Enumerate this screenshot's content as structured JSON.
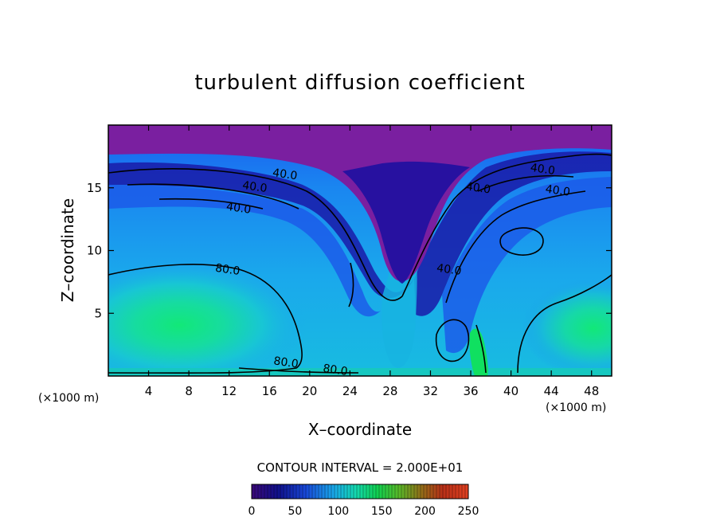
{
  "chart_data": {
    "type": "heatmap",
    "title": "turbulent diffusion coefficient",
    "xlabel": "X–coordinate",
    "ylabel": "Z–coordinate",
    "x_unit_left": "(×1000 m)",
    "x_unit_right": "(×1000 m)",
    "xlim": [
      0,
      50
    ],
    "ylim": [
      0,
      20
    ],
    "x_ticks": [
      4,
      8,
      12,
      16,
      20,
      24,
      28,
      32,
      36,
      40,
      44,
      48
    ],
    "y_ticks": [
      5,
      10,
      15
    ],
    "contour_interval_text": "CONTOUR INTERVAL = 2.000E+01",
    "contour_interval": 20,
    "contour_labels": [
      {
        "text": "40.0",
        "x": 17.5,
        "y": 15.8
      },
      {
        "text": "40.0",
        "x": 14.5,
        "y": 14.8
      },
      {
        "text": "40.0",
        "x": 12.9,
        "y": 13.1
      },
      {
        "text": "80.0",
        "x": 11.8,
        "y": 8.2
      },
      {
        "text": "80.0",
        "x": 17.6,
        "y": 0.8
      },
      {
        "text": "80.0",
        "x": 22.5,
        "y": 0.2
      },
      {
        "text": "40.0",
        "x": 43.1,
        "y": 16.2
      },
      {
        "text": "40.0",
        "x": 36.7,
        "y": 14.7
      },
      {
        "text": "40.0",
        "x": 44.6,
        "y": 14.5
      },
      {
        "text": "40.0",
        "x": 33.8,
        "y": 8.2
      }
    ],
    "colorbar": {
      "min": 0,
      "max": 250,
      "tick_values": [
        0,
        50,
        100,
        150,
        200,
        250
      ],
      "tick_labels": [
        "0",
        "50",
        "100",
        "150",
        "200",
        "250"
      ]
    },
    "colors": {
      "top_layer": "#7a1fa0",
      "low": "#1a10a8",
      "mid_low": "#1b68f0",
      "mid": "#18b2e8",
      "mid_high": "#16d8b8",
      "high": "#12e878"
    }
  }
}
